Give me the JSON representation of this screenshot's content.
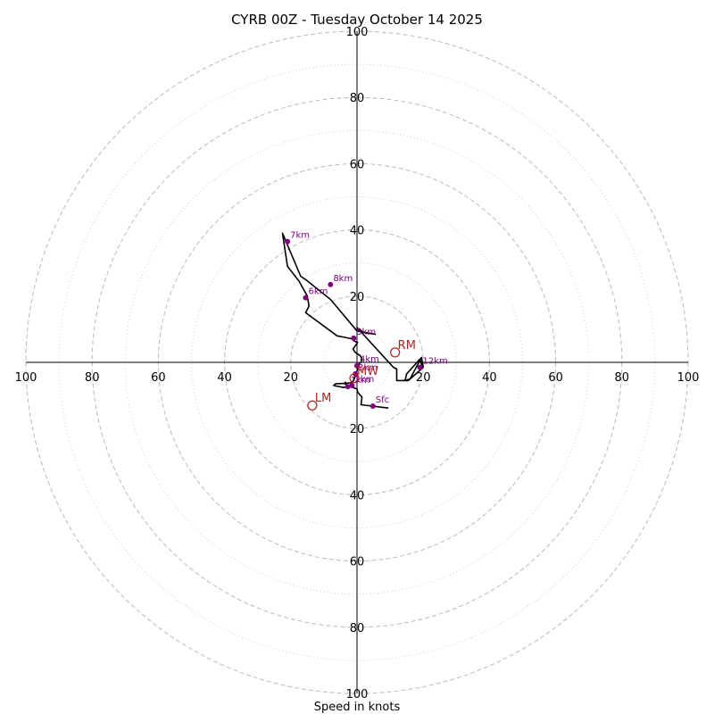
{
  "chart_data": {
    "type": "line",
    "title": "CYRB 00Z - Tuesday October 14 2025",
    "xlabel": "Speed in knots",
    "ylabel": "",
    "xlim": [
      -100,
      100
    ],
    "ylim": [
      -100,
      100
    ],
    "tick_values": [
      -100,
      -80,
      -60,
      -40,
      -20,
      20,
      40,
      60,
      80,
      100
    ],
    "tick_labels": [
      "100",
      "80",
      "60",
      "40",
      "20",
      "20",
      "40",
      "60",
      "80",
      "100"
    ],
    "ring_major": [
      20,
      40,
      60,
      80,
      100
    ],
    "ring_minor": [
      10,
      30,
      50,
      70,
      90
    ],
    "grid": true,
    "colors": {
      "line": "#000000",
      "points": "#800080",
      "motion": "#b22222",
      "grid": "#bbbbbb"
    },
    "hodograph": {
      "u": [
        9.5,
        1.2,
        1.5,
        0.2,
        0.0,
        -1.5,
        -2.8,
        -3.6,
        -3.5,
        -3.0,
        -4.0,
        -7.0,
        -6.5,
        -2.0,
        -1.0,
        -0.3,
        0.5,
        0.8,
        1.2,
        1.5,
        1.0,
        -0.5,
        -1.2,
        0.2,
        -1.0,
        -1.0,
        -6.0,
        -15.5,
        -14.5,
        -15.0,
        -17.5,
        -21.0,
        -22.5,
        -17.0,
        -15.5,
        -8.0,
        0.0,
        5.5,
        2.0,
        0.0,
        11.0,
        12.0,
        12.0,
        15.5,
        20.0,
        19.5,
        16.0,
        14.5,
        15.0,
        19.0,
        19.8
      ],
      "v": [
        -13.8,
        -12.8,
        -10.5,
        -9.0,
        -8.0,
        -7.5,
        -7.0,
        -6.5,
        -6.0,
        -7.2,
        -7.6,
        -7.0,
        -6.5,
        -6.2,
        -5.5,
        -3.5,
        -1.0,
        -0.2,
        0.0,
        1.0,
        2.0,
        3.0,
        4.0,
        6.0,
        6.5,
        7.0,
        8.0,
        15.0,
        17.0,
        20.0,
        24.5,
        29.0,
        39.0,
        26.0,
        25.0,
        19.0,
        9.5,
        8.5,
        9.0,
        10.5,
        -1.5,
        -2.0,
        -5.5,
        -5.5,
        -1.5,
        1.5,
        -5.0,
        -5.5,
        -3.5,
        1.0,
        -1.8
      ]
    },
    "markers": [
      {
        "label": "Sfc",
        "u": 4.8,
        "v": -13.2
      },
      {
        "label": "1km",
        "u": -2.8,
        "v": -7.3
      },
      {
        "label": "2km",
        "u": -1.5,
        "v": -7.0
      },
      {
        "label": "3km",
        "u": -0.5,
        "v": -3.5
      },
      {
        "label": "4km",
        "u": 0.0,
        "v": -1.0
      },
      {
        "label": "5km",
        "u": -1.0,
        "v": 7.3
      },
      {
        "label": "6km",
        "u": -15.5,
        "v": 19.5
      },
      {
        "label": "7km",
        "u": -21.0,
        "v": 36.5
      },
      {
        "label": "8km",
        "u": -8.0,
        "v": 23.5
      },
      {
        "label": "12km",
        "u": 19.0,
        "v": -1.5
      }
    ],
    "storm_motion": [
      {
        "label": "RM",
        "u": 11.5,
        "v": 3.0
      },
      {
        "label": "LM",
        "u": -13.5,
        "v": -13.0
      },
      {
        "label": "MW",
        "u": -0.8,
        "v": -4.8
      }
    ]
  }
}
